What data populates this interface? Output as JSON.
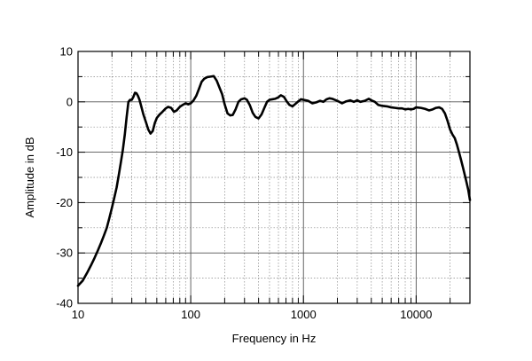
{
  "chart_data": {
    "type": "line",
    "title": "",
    "xlabel": "Frequency in Hz",
    "ylabel": "Amplitude in dB",
    "x_scale": "log",
    "xlim": [
      10,
      30000
    ],
    "ylim": [
      -40,
      10
    ],
    "grid": true,
    "x_ticks": [
      10,
      100,
      1000,
      10000
    ],
    "x_tick_labels": [
      "10",
      "100",
      "1000",
      "10000"
    ],
    "y_ticks": [
      10,
      0,
      -10,
      -20,
      -30,
      -40
    ],
    "y_tick_labels": [
      "10",
      "0",
      "-10",
      "-20",
      "-30",
      "-40"
    ],
    "series": [
      {
        "color": "#000000",
        "x": [
          10,
          11,
          12,
          13,
          14,
          15,
          16,
          17,
          18,
          19,
          20,
          21,
          22,
          23,
          24,
          25,
          26,
          27,
          28,
          29,
          30,
          31,
          32,
          33,
          34,
          35,
          36,
          38,
          40,
          42,
          44,
          46,
          48,
          50,
          53,
          56,
          60,
          63,
          67,
          71,
          75,
          80,
          85,
          90,
          95,
          100,
          106,
          112,
          118,
          125,
          132,
          140,
          150,
          160,
          170,
          180,
          190,
          200,
          212,
          224,
          236,
          250,
          265,
          280,
          300,
          315,
          335,
          355,
          375,
          400,
          425,
          450,
          475,
          500,
          530,
          560,
          600,
          630,
          670,
          710,
          750,
          800,
          850,
          900,
          950,
          1000,
          1100,
          1200,
          1300,
          1400,
          1500,
          1600,
          1700,
          1800,
          1900,
          2000,
          2200,
          2400,
          2600,
          2800,
          3000,
          3200,
          3500,
          3800,
          4000,
          4300,
          4600,
          5000,
          5500,
          6000,
          6500,
          7000,
          7500,
          8000,
          8500,
          9000,
          9500,
          10000,
          11000,
          12000,
          13000,
          14000,
          15000,
          16000,
          17000,
          18000,
          19000,
          20000,
          21000,
          22000,
          23000,
          24000,
          25000,
          26000,
          27000,
          28000,
          29000,
          30000
        ],
        "y": [
          -36.5,
          -35.5,
          -34,
          -32.5,
          -31,
          -29.5,
          -28,
          -26.5,
          -25,
          -23,
          -21,
          -19,
          -17,
          -14.5,
          -12,
          -9.5,
          -6.5,
          -3,
          0,
          0.4,
          0.4,
          1,
          1.8,
          1.7,
          1.2,
          0.5,
          -0.5,
          -2.5,
          -4,
          -5.5,
          -6.3,
          -5.8,
          -4.2,
          -3.2,
          -2.5,
          -2,
          -1.3,
          -1,
          -1.2,
          -2,
          -1.7,
          -1,
          -0.6,
          -0.3,
          -0.5,
          -0.3,
          0.3,
          1.2,
          2.5,
          4,
          4.6,
          4.9,
          5,
          5.1,
          4.2,
          2.8,
          1.5,
          -0.5,
          -2.3,
          -2.7,
          -2.6,
          -1.5,
          0,
          0.5,
          0.7,
          0.4,
          -0.7,
          -2.2,
          -3,
          -3.3,
          -2.5,
          -1.2,
          0,
          0.4,
          0.5,
          0.6,
          0.9,
          1.3,
          1,
          0.1,
          -0.6,
          -0.9,
          -0.4,
          0.1,
          0.5,
          0.4,
          0.2,
          -0.3,
          -0.1,
          0.2,
          0,
          0.5,
          0.7,
          0.6,
          0.4,
          0.2,
          -0.3,
          0.1,
          0.3,
          0,
          0.3,
          0,
          0.2,
          0.6,
          0.3,
          0,
          -0.6,
          -0.8,
          -0.9,
          -1.1,
          -1.2,
          -1.3,
          -1.3,
          -1.5,
          -1.4,
          -1.5,
          -1.4,
          -1.1,
          -1.2,
          -1.4,
          -1.7,
          -1.5,
          -1.2,
          -1.1,
          -1.4,
          -2.3,
          -3.8,
          -5.5,
          -6.5,
          -7.2,
          -8.5,
          -10,
          -11.5,
          -13,
          -14.5,
          -16,
          -17.5,
          -19.5
        ]
      }
    ]
  }
}
